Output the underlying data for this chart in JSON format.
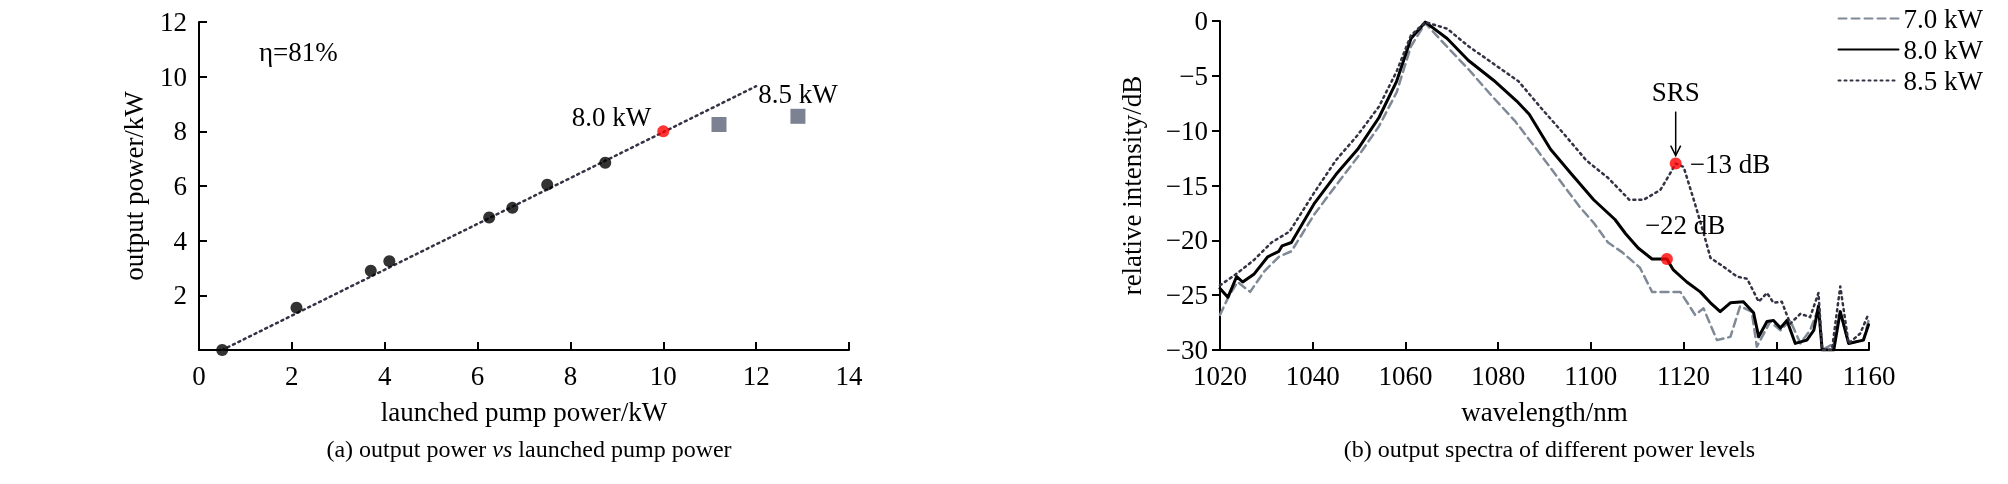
{
  "chart_data": [
    {
      "type": "scatter",
      "title": "(a) output power $_{}$vs launched pump power",
      "xlabel": "launched pump power/kW",
      "ylabel": "output power/kW",
      "xlim": [
        0,
        14
      ],
      "ylim": [
        0,
        12
      ],
      "xticks": [
        0,
        2,
        4,
        6,
        8,
        10,
        12,
        14
      ],
      "yticks": [
        2,
        4,
        6,
        8,
        10,
        12
      ],
      "grid": false,
      "legend": false,
      "series": [
        {
          "type": "line",
          "line_style": "dotted",
          "marker": "none",
          "color": "#333344",
          "x": [
            0.5,
            12
          ],
          "values": [
            0,
            9.65
          ]
        },
        {
          "marker": "circle",
          "color": "#000000",
          "colors": [
            "#000000",
            "#000000",
            "#000000",
            "#000000",
            "#000000",
            "#000000",
            "#000000",
            "#000000",
            "#ff0000"
          ],
          "x": [
            0.5,
            2.1,
            3.7,
            4.1,
            6.25,
            6.75,
            7.5,
            8.75,
            10
          ],
          "values": [
            0,
            1.55,
            2.9,
            3.25,
            4.85,
            5.2,
            6.05,
            6.85,
            8.0
          ]
        },
        {
          "marker": "square",
          "color": "#5b6377",
          "x": [
            11.2,
            12.9
          ],
          "values": [
            8.25,
            8.55
          ]
        }
      ],
      "annotations": [
        "η=81%",
        {
          "text": "8.0 kW",
          "x": 10,
          "y": 8.0
        },
        {
          "text": "8.5 kW",
          "x": 12.9,
          "y": 8.55
        }
      ]
    },
    {
      "type": "line",
      "title": "(b) output spectra of different power levels",
      "xlabel": "wavelength/nm",
      "ylabel": "relative intensity/dB",
      "xlim": [
        1020,
        1160
      ],
      "ylim": [
        -30,
        0
      ],
      "xticks": [
        1020,
        1040,
        1060,
        1080,
        1100,
        1120,
        1140,
        1160
      ],
      "yticks": [
        {
          "value": -30,
          "label": "−30"
        },
        {
          "value": -25,
          "label": "−25"
        },
        {
          "value": -20,
          "label": "−20"
        },
        {
          "value": -15,
          "label": "−15"
        },
        {
          "value": -10,
          "label": "−10"
        },
        {
          "value": -5,
          "label": "−5"
        },
        0
      ],
      "grid": false,
      "legend": "top right",
      "marker": "none",
      "series": [
        {
          "name": "7.0 kW",
          "line_style": "dashed",
          "color": "#7f8a96",
          "x": [
            1020,
            1021.9,
            1023.8,
            1026.5,
            1029.6,
            1032.7,
            1035.4,
            1040.4,
            1045,
            1049.7,
            1054.3,
            1058.1,
            1061.2,
            1064.3,
            1068.2,
            1073.6,
            1079,
            1083.6,
            1088.3,
            1092.9,
            1097.5,
            1100.6,
            1103.7,
            1106.8,
            1110.6,
            1113.2,
            1119.3,
            1122.5,
            1124.3,
            1127.2,
            1130.1,
            1132.2,
            1134.7,
            1135.8,
            1138.7,
            1140.9,
            1143,
            1145.2,
            1147.3,
            1149.1,
            1149.9,
            1152.4,
            1153.8,
            1155.6,
            1158.8,
            1159.9
          ],
          "values": [
            -26.8,
            -25.1,
            -23.8,
            -24.7,
            -22.8,
            -21.5,
            -21.0,
            -17.6,
            -15.0,
            -12.4,
            -9.6,
            -6.5,
            -2.3,
            -0.2,
            -2.0,
            -4.4,
            -7.0,
            -9.1,
            -11.7,
            -14.3,
            -16.9,
            -18.4,
            -20.2,
            -21.1,
            -22.5,
            -24.7,
            -24.7,
            -26.8,
            -26.2,
            -29.1,
            -28.8,
            -26.0,
            -26.5,
            -29.7,
            -27.4,
            -28.2,
            -27.3,
            -29.4,
            -28.2,
            -26.2,
            -30,
            -29.4,
            -26.5,
            -29.4,
            -29.1,
            -27.3
          ]
        },
        {
          "name": "8.0 kW",
          "line_style": "solid",
          "color": "#000000",
          "x": [
            1020,
            1021.7,
            1023.6,
            1024.9,
            1027.3,
            1030.3,
            1032.7,
            1033.4,
            1035.4,
            1040.4,
            1045,
            1049.7,
            1054.3,
            1058.1,
            1061.2,
            1064.3,
            1069,
            1073.6,
            1079,
            1084,
            1086.7,
            1091.3,
            1095.9,
            1100.6,
            1105.2,
            1107.5,
            1110.2,
            1113.2,
            1116.4,
            1117.8,
            1120.7,
            1123.6,
            1125.8,
            1127.9,
            1130.1,
            1132.9,
            1135.1,
            1136.2,
            1138,
            1139.4,
            1140.9,
            1142.3,
            1144.1,
            1146.6,
            1148.1,
            1149.1,
            1149.9,
            1152.4,
            1153.8,
            1155.6,
            1158.8,
            1159.9
          ],
          "values": [
            -24.4,
            -25.2,
            -23.3,
            -23.8,
            -23.1,
            -21.5,
            -21.0,
            -20.5,
            -20.2,
            -16.6,
            -14.0,
            -11.7,
            -8.8,
            -5.5,
            -1.6,
            -0.1,
            -1.6,
            -3.6,
            -5.4,
            -7.3,
            -8.5,
            -11.7,
            -14.0,
            -16.3,
            -18.1,
            -19.4,
            -20.7,
            -21.7,
            -21.7,
            -22.7,
            -23.8,
            -24.7,
            -25.7,
            -26.5,
            -25.7,
            -25.6,
            -26.6,
            -28.8,
            -27.4,
            -27.3,
            -28.0,
            -27.3,
            -29.4,
            -29.1,
            -28.2,
            -26.0,
            -30,
            -30,
            -26.5,
            -29.4,
            -29.1,
            -27.7
          ]
        },
        {
          "name": "8.5 kW",
          "line_style": "dotted",
          "color": "#333344",
          "x": [
            1020,
            1023.4,
            1027.3,
            1031.1,
            1035,
            1040.4,
            1045,
            1049.7,
            1054.3,
            1058.1,
            1061.2,
            1064.3,
            1069,
            1073.6,
            1079,
            1084.4,
            1089,
            1094.4,
            1099,
            1103.7,
            1108.3,
            1111.4,
            1115,
            1117.1,
            1118.3,
            1120,
            1122.2,
            1124.3,
            1125.8,
            1128.6,
            1131.5,
            1133.7,
            1136.2,
            1138,
            1139.4,
            1141.2,
            1143,
            1145.2,
            1147.3,
            1149.1,
            1149.9,
            1152,
            1153.8,
            1155.6,
            1158.1,
            1159.9
          ],
          "values": [
            -24.1,
            -23.1,
            -21.8,
            -20.2,
            -19.2,
            -15.6,
            -12.7,
            -10.4,
            -7.8,
            -4.6,
            -1.3,
            -0.1,
            -0.7,
            -2.3,
            -3.9,
            -5.5,
            -7.8,
            -10.4,
            -12.7,
            -14.3,
            -16.3,
            -16.3,
            -15.4,
            -13.9,
            -13.0,
            -13.3,
            -16.3,
            -19.3,
            -21.6,
            -22.4,
            -23.3,
            -23.5,
            -25.6,
            -24.8,
            -25.7,
            -25.6,
            -27.6,
            -26.7,
            -27.0,
            -24.8,
            -30,
            -30,
            -24.2,
            -29.4,
            -28.5,
            -26.7
          ]
        },
        {
          "type": "scatter",
          "marker": "circle",
          "color": "#ff0000",
          "x": [
            1116.4,
            1118.3
          ],
          "values": [
            -21.7,
            -13.0
          ]
        }
      ],
      "annotations": [
        {
          "text": "SRS",
          "x": 1118.3,
          "y": -13.0
        },
        {
          "text": "−13 dB",
          "x": 1118.3,
          "y": -13.0
        },
        {
          "text": "−22 dB",
          "x": 1116.4,
          "y": -21.7
        }
      ]
    }
  ]
}
